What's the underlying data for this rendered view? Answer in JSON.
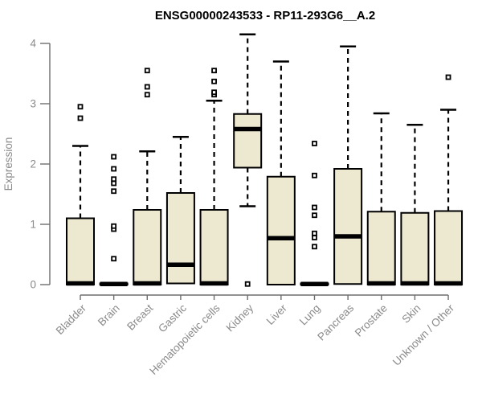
{
  "chart_data": {
    "type": "boxplot",
    "title": "ENSG00000243533 - RP11-293G6__A.2",
    "xlabel": "",
    "ylabel": "Expression",
    "ylim": [
      0,
      4.2
    ],
    "yticks": [
      0,
      1,
      2,
      3,
      4
    ],
    "grid": false,
    "legend": "none",
    "categories": [
      "Bladder",
      "Brain",
      "Breast",
      "Gastric",
      "Hematopoietic cells",
      "Kidney",
      "Liver",
      "Lung",
      "Pancreas",
      "Prostate",
      "Skin",
      "Unknown / Other"
    ],
    "boxes": [
      {
        "category": "Bladder",
        "low": 0,
        "q1": 0,
        "median": 0.02,
        "q3": 1.1,
        "high": 2.3,
        "outliers": [
          2.76,
          2.95
        ]
      },
      {
        "category": "Brain",
        "low": 0,
        "q1": 0,
        "median": 0.01,
        "q3": 0.02,
        "high": 0.02,
        "outliers": [
          0.43,
          0.92,
          0.97,
          1.55,
          1.68,
          1.75,
          1.92,
          2.12
        ]
      },
      {
        "category": "Breast",
        "low": 0,
        "q1": 0,
        "median": 0.02,
        "q3": 1.24,
        "high": 2.21,
        "outliers": [
          3.15,
          3.28,
          3.55
        ]
      },
      {
        "category": "Gastric",
        "low": 0,
        "q1": 0.02,
        "median": 0.33,
        "q3": 1.52,
        "high": 2.45,
        "outliers": []
      },
      {
        "category": "Hematopoietic cells",
        "low": 0,
        "q1": 0,
        "median": 0.02,
        "q3": 1.24,
        "high": 3.05,
        "outliers": [
          3.15,
          3.19,
          3.37,
          3.55
        ]
      },
      {
        "category": "Kidney",
        "low": 1.3,
        "q1": 1.94,
        "median": 2.58,
        "q3": 2.83,
        "high": 4.15,
        "outliers": [
          0.01
        ]
      },
      {
        "category": "Liver",
        "low": 0,
        "q1": 0,
        "median": 0.77,
        "q3": 1.79,
        "high": 3.7,
        "outliers": []
      },
      {
        "category": "Lung",
        "low": 0,
        "q1": 0,
        "median": 0.01,
        "q3": 0.02,
        "high": 0.02,
        "outliers": [
          0.63,
          0.78,
          0.85,
          1.15,
          1.28,
          1.81,
          2.34
        ]
      },
      {
        "category": "Pancreas",
        "low": 0,
        "q1": 0.01,
        "median": 0.8,
        "q3": 1.92,
        "high": 3.95,
        "outliers": []
      },
      {
        "category": "Prostate",
        "low": 0,
        "q1": 0,
        "median": 0.02,
        "q3": 1.21,
        "high": 2.84,
        "outliers": []
      },
      {
        "category": "Skin",
        "low": 0,
        "q1": 0,
        "median": 0.02,
        "q3": 1.19,
        "high": 2.65,
        "outliers": []
      },
      {
        "category": "Unknown / Other",
        "low": 0,
        "q1": 0,
        "median": 0.02,
        "q3": 1.22,
        "high": 2.9,
        "outliers": [
          3.44
        ]
      }
    ],
    "style": {
      "box_fill": "#EDE8D0",
      "box_stroke": "#000000",
      "median_color": "#000000",
      "whisker_color": "#000000",
      "whisker_style": "dashed",
      "axis_color": "#6e6e6e",
      "label_color": "#8a8a8a",
      "title_color": "#000000",
      "background": "#ffffff"
    }
  }
}
